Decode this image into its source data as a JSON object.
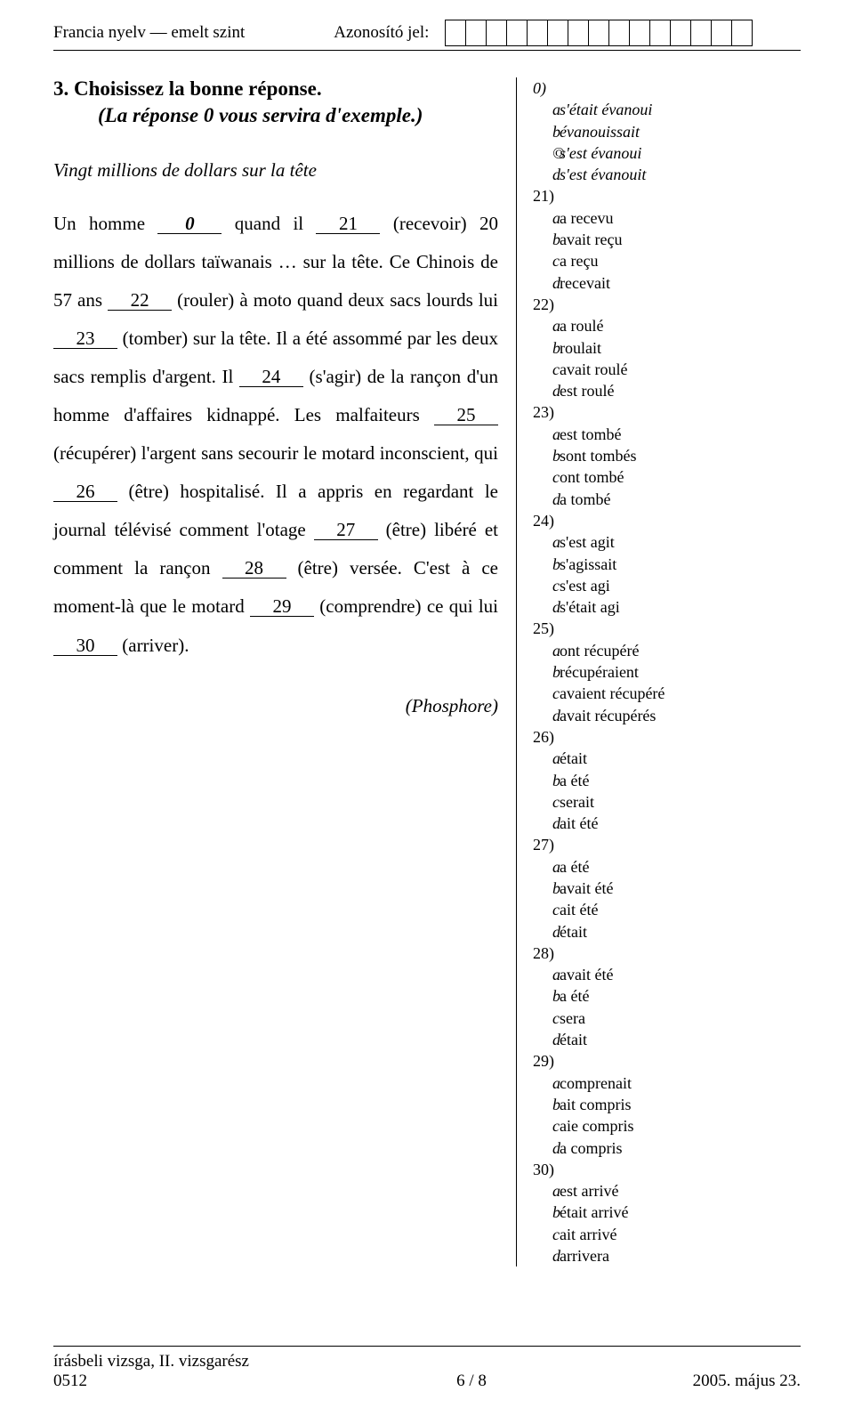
{
  "header": {
    "left": "Francia nyelv — emelt szint",
    "mid": "Azonosító jel:",
    "box_count": 15
  },
  "question": {
    "title": "3. Choisissez la bonne réponse.",
    "subtitle": "(La réponse 0 vous servira d'exemple.)",
    "passage_title": "Vingt millions de dollars sur la tête",
    "p": {
      "t0": "Un homme ",
      "b0": "0",
      "t1": " quand il ",
      "b21": "21",
      "t2": " (recevoir) 20 millions de dollars taïwanais … sur la tête. Ce Chinois de 57 ans ",
      "b22": "22",
      "t3": " (rouler) à moto quand deux sacs lourds lui ",
      "b23": "23",
      "t4": " (tomber) sur la tête. Il a été assommé par les deux sacs remplis d'argent. Il ",
      "b24": "24",
      "t5": " (s'agir) de la rançon d'un homme d'affaires kidnappé. Les malfaiteurs ",
      "b25": "25",
      "t6": " (récupérer) l'argent sans secourir le motard inconscient, qui ",
      "b26": "26",
      "t7": " (être) hospitalisé. Il a appris en regardant le journal télévisé comment l'otage ",
      "b27": "27",
      "t8": " (être) libéré et comment la rançon ",
      "b28": "28",
      "t9": " (être) versée. C'est à ce moment-là que le motard ",
      "b29": "29",
      "t10": " (comprendre) ce qui lui ",
      "b30": "30",
      "t11": " (arriver)."
    },
    "source": "(Phosphore)"
  },
  "answers": [
    {
      "num": "0)",
      "italic_num": true,
      "opts": [
        {
          "l": "a",
          "t": "s'était évanoui",
          "it": true
        },
        {
          "l": "b",
          "t": "évanouissait",
          "it": true
        },
        {
          "l": "©",
          "t": "s'est évanoui",
          "it": true
        },
        {
          "l": "d",
          "t": "s'est évanouit",
          "it": true
        }
      ]
    },
    {
      "num": "21)",
      "opts": [
        {
          "l": "a",
          "t": "a recevu"
        },
        {
          "l": "b",
          "t": "avait reçu"
        },
        {
          "l": "c",
          "t": "a reçu"
        },
        {
          "l": "d",
          "t": "recevait"
        }
      ]
    },
    {
      "num": "22)",
      "opts": [
        {
          "l": "a",
          "t": "a roulé"
        },
        {
          "l": "b",
          "t": "roulait"
        },
        {
          "l": "c",
          "t": "avait roulé"
        },
        {
          "l": "d",
          "t": "est roulé"
        }
      ]
    },
    {
      "num": "23)",
      "opts": [
        {
          "l": "a",
          "t": "est tombé"
        },
        {
          "l": "b",
          "t": "sont tombés"
        },
        {
          "l": "c",
          "t": "ont tombé"
        },
        {
          "l": "d",
          "t": "a tombé"
        }
      ]
    },
    {
      "num": "24)",
      "opts": [
        {
          "l": "a",
          "t": "s'est agit"
        },
        {
          "l": "b",
          "t": "s'agissait"
        },
        {
          "l": "c",
          "t": "s'est agi"
        },
        {
          "l": "d",
          "t": "s'était agi"
        }
      ]
    },
    {
      "num": "25)",
      "opts": [
        {
          "l": "a",
          "t": "ont récupéré"
        },
        {
          "l": "b",
          "t": "récupéraient"
        },
        {
          "l": "c",
          "t": "avaient récupéré"
        },
        {
          "l": "d",
          "t": "avait récupérés"
        }
      ]
    },
    {
      "num": "26)",
      "opts": [
        {
          "l": "a",
          "t": "était"
        },
        {
          "l": "b",
          "t": "a été"
        },
        {
          "l": "c",
          "t": "serait"
        },
        {
          "l": "d",
          "t": "ait été"
        }
      ]
    },
    {
      "num": "27)",
      "opts": [
        {
          "l": "a",
          "t": "a été"
        },
        {
          "l": "b",
          "t": "avait été"
        },
        {
          "l": "c",
          "t": "ait été"
        },
        {
          "l": "d",
          "t": "était"
        }
      ]
    },
    {
      "num": "28)",
      "opts": [
        {
          "l": "a",
          "t": "avait été"
        },
        {
          "l": "b",
          "t": "a été"
        },
        {
          "l": "c",
          "t": "sera"
        },
        {
          "l": "d",
          "t": "était"
        }
      ]
    },
    {
      "num": "29)",
      "opts": [
        {
          "l": "a",
          "t": "comprenait"
        },
        {
          "l": "b",
          "t": "ait compris"
        },
        {
          "l": "c",
          "t": "aie compris"
        },
        {
          "l": "d",
          "t": "a compris"
        }
      ]
    },
    {
      "num": "30)",
      "opts": [
        {
          "l": "a",
          "t": "est arrivé"
        },
        {
          "l": "b",
          "t": "était arrivé"
        },
        {
          "l": "c",
          "t": "ait arrivé"
        },
        {
          "l": "d",
          "t": "arrivera"
        }
      ]
    }
  ],
  "footer": {
    "left_line1": "írásbeli vizsga, II. vizsgarész",
    "left_line2": "0512",
    "mid": "6 / 8",
    "right": "2005. május 23."
  }
}
